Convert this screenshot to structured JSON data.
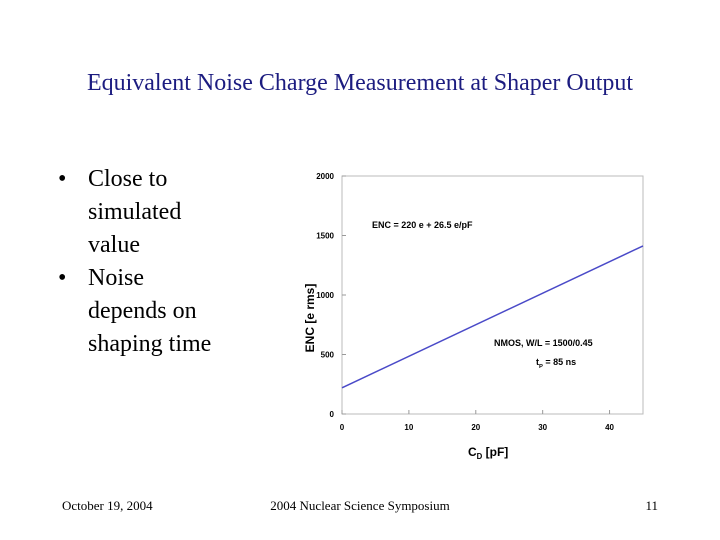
{
  "title": "Equivalent Noise Charge Measurement at Shaper Output",
  "bullets": [
    [
      "Close to",
      "simulated",
      "value"
    ],
    [
      "Noise",
      "depends on",
      "shaping time"
    ]
  ],
  "bullet_symbol": "•",
  "footer": {
    "date": "October 19, 2004",
    "event": "2004 Nuclear Science Symposium",
    "page": "11"
  },
  "chart_data": {
    "type": "line",
    "x": [
      0,
      45
    ],
    "series": [
      {
        "name": "ENC",
        "color": "#4a4ac8",
        "values": [
          220,
          1412.5
        ]
      }
    ],
    "xlim": [
      0,
      45
    ],
    "xticks": [
      0,
      10,
      20,
      30,
      40
    ],
    "ylim": [
      0,
      2000
    ],
    "yticks": [
      0,
      500,
      1000,
      1500,
      2000
    ],
    "xlabel": {
      "main": "C",
      "sub": "D",
      "rest": " [pF]"
    },
    "ylabel": "ENC [e rms]",
    "annotations": {
      "formula": "ENC = 220 e + 26.5 e/pF",
      "device": "NMOS, W/L = 1500/0.45",
      "time": {
        "main": "t",
        "sub": "P",
        "rest": " = 85 ns"
      }
    }
  }
}
